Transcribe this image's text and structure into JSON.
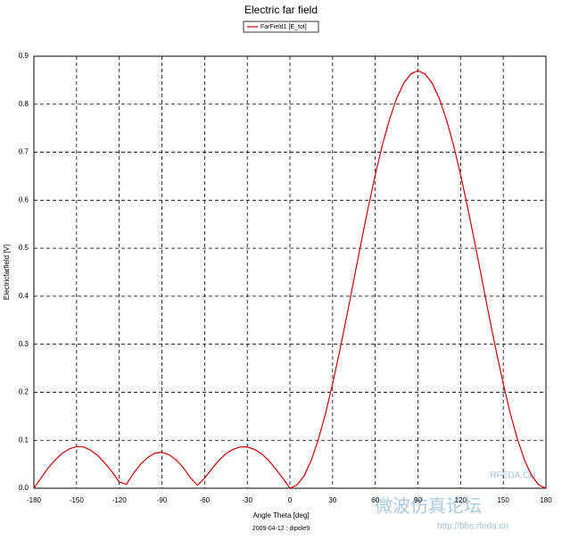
{
  "chart_data": {
    "type": "line",
    "title": "Electric far field",
    "x_label": "Angle Theta [deg]",
    "y_label": "Electricfarfield [V]",
    "footer": "2009-04-12 : dipole9",
    "watermarks": [
      "RFEDA.CN",
      "微波仿真论坛",
      "http://bbs.rfeda.cn"
    ],
    "x": [
      -180,
      -175,
      -170,
      -165,
      -160,
      -155,
      -150,
      -145,
      -140,
      -135,
      -130,
      -125,
      -120,
      -115,
      -110,
      -105,
      -100,
      -95,
      -90,
      -85,
      -80,
      -75,
      -70,
      -65,
      -60,
      -55,
      -50,
      -45,
      -40,
      -35,
      -30,
      -25,
      -20,
      -15,
      -10,
      -5,
      0,
      5,
      10,
      15,
      20,
      25,
      30,
      35,
      40,
      45,
      50,
      55,
      60,
      65,
      70,
      75,
      80,
      85,
      90,
      95,
      100,
      105,
      110,
      115,
      120,
      125,
      130,
      135,
      140,
      145,
      150,
      155,
      160,
      165,
      170,
      175,
      180
    ],
    "series": [
      {
        "name": "FarField1 [E_tot]",
        "color": "#cc0000",
        "values": [
          0,
          0.021,
          0.042,
          0.059,
          0.073,
          0.082,
          0.087,
          0.086,
          0.079,
          0.068,
          0.052,
          0.034,
          0.013,
          0.008,
          0.031,
          0.05,
          0.064,
          0.073,
          0.075,
          0.07,
          0.059,
          0.043,
          0.022,
          0.006,
          0.021,
          0.04,
          0.058,
          0.072,
          0.081,
          0.086,
          0.086,
          0.081,
          0.072,
          0.058,
          0.04,
          0.021,
          0,
          0.007,
          0.026,
          0.058,
          0.102,
          0.155,
          0.218,
          0.286,
          0.359,
          0.435,
          0.511,
          0.584,
          0.653,
          0.715,
          0.768,
          0.812,
          0.844,
          0.863,
          0.87,
          0.863,
          0.844,
          0.812,
          0.768,
          0.715,
          0.653,
          0.584,
          0.511,
          0.435,
          0.359,
          0.286,
          0.218,
          0.155,
          0.102,
          0.058,
          0.026,
          0.007,
          0
        ]
      }
    ],
    "xlim": [
      -180,
      180
    ],
    "xticks": [
      -180,
      -150,
      -120,
      -90,
      -60,
      -30,
      0,
      30,
      60,
      90,
      120,
      150,
      180
    ],
    "ylim": [
      0,
      0.9
    ],
    "yticks": [
      {
        "value": 0,
        "label": "0.0"
      },
      0.1,
      0.2,
      0.3,
      0.4,
      0.5,
      0.6,
      0.7,
      0.8,
      0.9
    ],
    "grid": true,
    "legend": "top"
  }
}
